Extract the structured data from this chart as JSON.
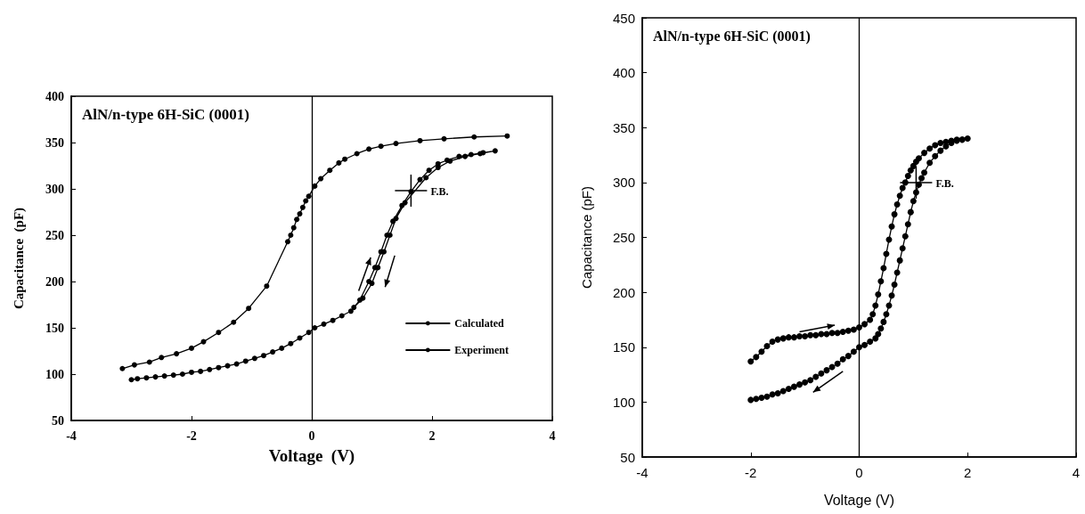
{
  "chart_data": [
    {
      "type": "line",
      "title": "AlN/n-type 6H-SiC (0001)",
      "xlabel": "Voltage  (V)",
      "ylabel": "Capacitance  (pF)",
      "xlim": [
        -4,
        4
      ],
      "xticks": [
        -4,
        -2,
        0,
        2,
        4
      ],
      "ylim": [
        50,
        400
      ],
      "yticks": [
        50,
        100,
        150,
        200,
        250,
        300,
        350,
        400
      ],
      "grid": false,
      "legend": "bottom right",
      "marker": "circle",
      "line_style": "solid",
      "ref_lines": [
        {
          "axis": "x",
          "value": 0,
          "label": null
        }
      ],
      "annotations": [
        {
          "text": "F.B.",
          "x": 1.65,
          "y": 298
        }
      ],
      "series": [
        {
          "name": "Calculated",
          "color": "#000000",
          "x": [
            -3.15,
            -2.95,
            -2.7,
            -2.5,
            -2.25,
            -2.0,
            -1.8,
            -1.55,
            -1.3,
            -1.05,
            -0.75,
            -0.4,
            -0.35,
            -0.3,
            -0.25,
            -0.2,
            -0.15,
            -0.1,
            -0.05,
            0.05,
            0.15,
            0.3,
            0.45,
            0.55,
            0.75,
            0.95,
            1.15,
            1.4,
            1.8,
            2.2,
            2.7,
            3.25
          ],
          "values": [
            106,
            110,
            113,
            118,
            122,
            128,
            135,
            145,
            156,
            171,
            195,
            243,
            250,
            258,
            267,
            273,
            280,
            287,
            292,
            303,
            311,
            320,
            328,
            332,
            338,
            343,
            346,
            349,
            352,
            354,
            356,
            357
          ]
        },
        {
          "name": "Experiment",
          "color": "#000000",
          "x": [
            -3.0,
            -2.9,
            -2.75,
            -2.6,
            -2.45,
            -2.3,
            -2.15,
            -2.0,
            -1.85,
            -1.7,
            -1.55,
            -1.4,
            -1.25,
            -1.1,
            -0.95,
            -0.8,
            -0.65,
            -0.5,
            -0.35,
            -0.2,
            -0.05,
            0.05,
            0.2,
            0.35,
            0.5,
            0.65,
            0.8,
            0.95,
            1.05,
            1.15,
            1.25,
            1.35,
            1.5,
            1.65,
            1.8,
            1.95,
            2.1,
            2.25,
            2.45,
            2.65,
            2.85,
            3.05,
            2.8,
            2.55,
            2.3,
            2.1,
            1.9,
            1.55,
            1.4,
            1.3,
            1.2,
            1.1,
            1.0,
            0.85,
            0.7
          ],
          "values": [
            94,
            95,
            96,
            97,
            98,
            99,
            100,
            102,
            103,
            105,
            107,
            109,
            111,
            114,
            117,
            120,
            124,
            128,
            133,
            139,
            145,
            150,
            154,
            158,
            163,
            168,
            180,
            200,
            215,
            232,
            250,
            265,
            282,
            297,
            310,
            320,
            327,
            331,
            335,
            337,
            339,
            341,
            338,
            335,
            330,
            323,
            312,
            285,
            268,
            250,
            232,
            215,
            198,
            182,
            172
          ]
        }
      ]
    },
    {
      "type": "line",
      "title": "AlN/n-type 6H-SiC (0001)",
      "xlabel": "Voltage (V)",
      "ylabel": "Capacitance (pF)",
      "xlim": [
        -4,
        4
      ],
      "xticks": [
        -4,
        -2,
        0,
        2,
        4
      ],
      "ylim": [
        50,
        450
      ],
      "yticks": [
        50,
        100,
        150,
        200,
        250,
        300,
        350,
        400,
        450
      ],
      "grid": false,
      "legend": false,
      "marker": "circle",
      "line_style": "solid",
      "ref_lines": [
        {
          "axis": "x",
          "value": 0,
          "label": null
        }
      ],
      "annotations": [
        {
          "text": "F.B.",
          "x": 1.05,
          "y": 300
        }
      ],
      "series": [
        {
          "color": "#000000",
          "x": [
            -2.0,
            -1.9,
            -1.8,
            -1.7,
            -1.6,
            -1.5,
            -1.4,
            -1.3,
            -1.2,
            -1.1,
            -1.0,
            -0.9,
            -0.8,
            -0.7,
            -0.6,
            -0.5,
            -0.4,
            -0.3,
            -0.2,
            -0.1,
            0.0,
            0.1,
            0.2,
            0.25,
            0.3,
            0.35,
            0.4,
            0.45,
            0.5,
            0.55,
            0.6,
            0.65,
            0.7,
            0.75,
            0.8,
            0.85,
            0.9,
            0.95,
            1.0,
            1.05,
            1.1,
            1.2,
            1.3,
            1.4,
            1.5,
            1.6,
            1.7,
            1.8,
            1.9,
            2.0,
            1.9,
            1.8,
            1.7,
            1.6,
            1.5,
            1.4,
            1.3,
            1.2,
            1.15,
            1.1,
            1.05,
            1.0,
            0.95,
            0.9,
            0.85,
            0.8,
            0.75,
            0.7,
            0.65,
            0.6,
            0.55,
            0.5,
            0.45,
            0.4,
            0.35,
            0.3,
            0.2,
            0.1,
            0.0,
            -0.1,
            -0.2,
            -0.3,
            -0.4,
            -0.5,
            -0.6,
            -0.7,
            -0.8,
            -0.9,
            -1.0,
            -1.1,
            -1.2,
            -1.3,
            -1.4,
            -1.5,
            -1.6,
            -1.7,
            -1.8,
            -1.9,
            -2.0
          ],
          "values": [
            137,
            141,
            146,
            151,
            155,
            157,
            158,
            159,
            159,
            160,
            160,
            161,
            161,
            162,
            162,
            163,
            163,
            164,
            165,
            166,
            168,
            171,
            175,
            180,
            188,
            198,
            210,
            222,
            235,
            248,
            260,
            271,
            280,
            288,
            295,
            300,
            306,
            311,
            315,
            319,
            322,
            327,
            331,
            334,
            336,
            337,
            338,
            339,
            339,
            340,
            339,
            338,
            336,
            333,
            329,
            324,
            318,
            309,
            304,
            298,
            291,
            283,
            273,
            262,
            251,
            240,
            229,
            218,
            207,
            197,
            188,
            180,
            173,
            167,
            162,
            158,
            155,
            152,
            150,
            146,
            142,
            139,
            135,
            132,
            129,
            126,
            123,
            120,
            118,
            116,
            114,
            112,
            110,
            108,
            107,
            105,
            104,
            103,
            102
          ]
        }
      ]
    }
  ]
}
